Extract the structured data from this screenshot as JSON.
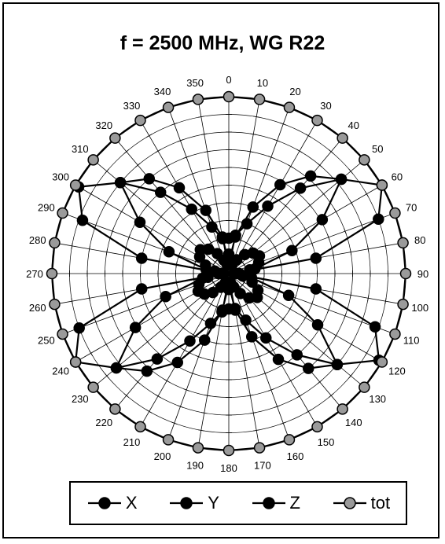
{
  "chart_data": {
    "type": "polar-line",
    "title": "f = 2500 MHz, WG R22",
    "angle_ticks": [
      "0",
      "10",
      "20",
      "30",
      "40",
      "50",
      "60",
      "70",
      "80",
      "90",
      "100",
      "110",
      "120",
      "130",
      "140",
      "150",
      "160",
      "170",
      "180",
      "190",
      "200",
      "210",
      "220",
      "230",
      "240",
      "250",
      "260",
      "270",
      "280",
      "290",
      "300",
      "310",
      "320",
      "330",
      "340",
      "350"
    ],
    "angles": [
      0,
      10,
      20,
      30,
      40,
      50,
      60,
      70,
      80,
      90,
      100,
      110,
      120,
      130,
      140,
      150,
      160,
      170,
      180,
      190,
      200,
      210,
      220,
      230,
      240,
      250,
      260,
      270,
      280,
      290,
      300,
      310,
      320,
      330,
      340,
      350
    ],
    "rlim": [
      0,
      1
    ],
    "grid": true,
    "legend_position": "bottom",
    "series": [
      {
        "name": "X",
        "color": "#000000",
        "marker_fill": "#000000",
        "values": [
          0.2,
          0.22,
          0.3,
          0.44,
          0.63,
          0.83,
          1.0,
          0.9,
          0.5,
          0.03,
          0.5,
          0.88,
          0.98,
          0.8,
          0.6,
          0.42,
          0.28,
          0.2,
          0.2,
          0.22,
          0.3,
          0.44,
          0.63,
          0.83,
          1.0,
          0.9,
          0.5,
          0.03,
          0.5,
          0.88,
          0.98,
          0.8,
          0.6,
          0.42,
          0.28,
          0.2
        ]
      },
      {
        "name": "Y",
        "color": "#000000",
        "marker_fill": "#000000",
        "values": [
          0.06,
          0.21,
          0.4,
          0.58,
          0.72,
          0.83,
          0.61,
          0.38,
          0.15,
          0.05,
          0.13,
          0.36,
          0.58,
          0.8,
          0.7,
          0.56,
          0.38,
          0.21,
          0.06,
          0.21,
          0.4,
          0.58,
          0.72,
          0.83,
          0.61,
          0.38,
          0.15,
          0.05,
          0.13,
          0.36,
          0.58,
          0.8,
          0.7,
          0.56,
          0.38,
          0.21
        ]
      },
      {
        "name": "Z",
        "color": "#000000",
        "marker_fill": "#000000",
        "values": [
          0.11,
          0.06,
          0.05,
          0.09,
          0.14,
          0.18,
          0.2,
          0.18,
          0.12,
          0.06,
          0.08,
          0.14,
          0.19,
          0.21,
          0.18,
          0.13,
          0.08,
          0.05,
          0.09,
          0.06,
          0.05,
          0.09,
          0.14,
          0.18,
          0.2,
          0.18,
          0.12,
          0.06,
          0.08,
          0.14,
          0.19,
          0.21,
          0.18,
          0.13,
          0.08,
          0.05
        ]
      },
      {
        "name": "tot",
        "color": "#000000",
        "marker_fill": "#9a9a9a",
        "values": [
          1.0,
          1.0,
          1.0,
          1.0,
          1.0,
          1.0,
          1.0,
          1.0,
          1.0,
          1.0,
          1.0,
          1.0,
          1.0,
          1.0,
          1.0,
          1.0,
          1.0,
          1.0,
          1.0,
          1.0,
          1.0,
          1.0,
          1.0,
          1.0,
          1.0,
          1.0,
          1.0,
          1.0,
          1.0,
          1.0,
          1.0,
          1.0,
          1.0,
          1.0,
          1.0,
          1.0
        ]
      }
    ]
  }
}
